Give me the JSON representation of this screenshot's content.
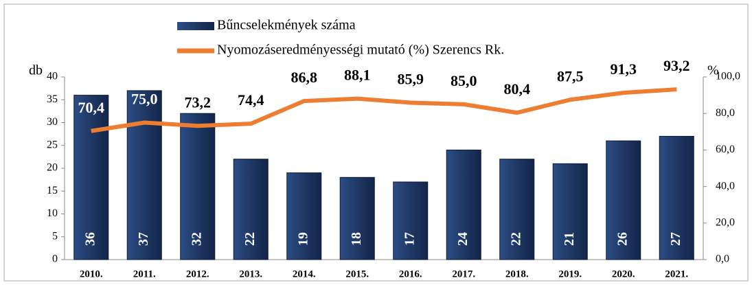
{
  "chart_data": {
    "type": "bar-line",
    "ylabel": "db",
    "y2label": "%",
    "categories": [
      "2010.",
      "2011.",
      "2012.",
      "2013.",
      "2014.",
      "2015.",
      "2016.",
      "2017.",
      "2018.",
      "2019.",
      "2020.",
      "2021."
    ],
    "series": [
      {
        "name": "Bűncselekmények száma",
        "type": "bar",
        "color": "#1f3864",
        "axis": "y",
        "values": [
          36,
          37,
          32,
          22,
          19,
          18,
          17,
          24,
          22,
          21,
          26,
          27
        ]
      },
      {
        "name": "Nyomozáseredményességi mutató (%) Szerencs Rk.",
        "type": "line",
        "color": "#ed7d31",
        "axis": "y2",
        "values": [
          70.4,
          75.0,
          73.2,
          74.4,
          86.8,
          88.1,
          85.9,
          85.0,
          80.4,
          87.5,
          91.3,
          93.2
        ],
        "value_labels": [
          "70,4",
          "75,0",
          "73,2",
          "74,4",
          "86,8",
          "88,1",
          "85,9",
          "85,0",
          "80,4",
          "87,5",
          "91,3",
          "93,2"
        ]
      }
    ],
    "ylim": [
      0,
      40
    ],
    "yticks": [
      0,
      5,
      10,
      15,
      20,
      25,
      30,
      35,
      40
    ],
    "y2lim": [
      0,
      100
    ],
    "y2ticks": [
      {
        "value": 0,
        "label": "0,0"
      },
      {
        "value": 20,
        "label": "20,0"
      },
      {
        "value": 40,
        "label": "40,0"
      },
      {
        "value": 60,
        "label": "60,0"
      },
      {
        "value": 80,
        "label": "80,0"
      },
      {
        "value": 100,
        "label": "100,0"
      }
    ],
    "legend": "top",
    "grid": false
  }
}
